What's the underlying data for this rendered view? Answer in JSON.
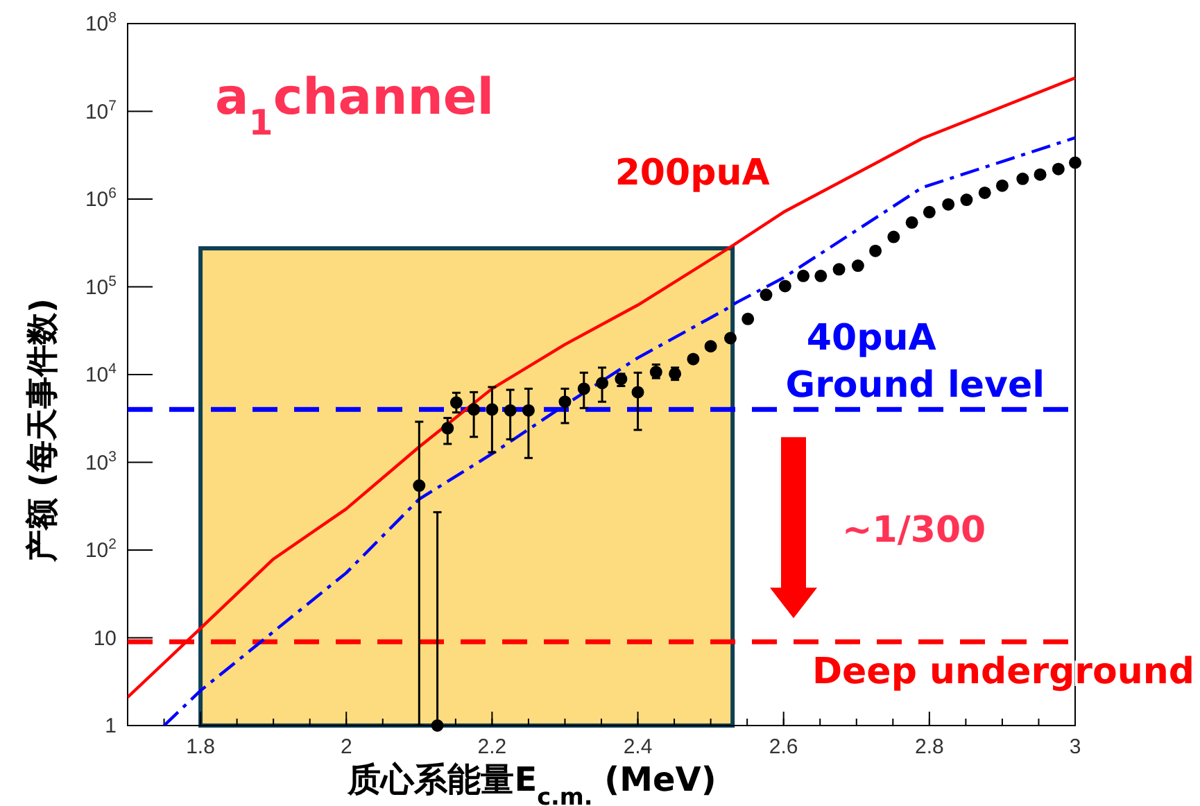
{
  "chart_data": {
    "type": "line",
    "xlabel": "质心系能量E$_{c.m.}$ (MeV)",
    "ylabel": "产额 (每天事件数)",
    "xlim": [
      1.7,
      3
    ],
    "xticks": [
      1.8,
      2,
      2.2,
      2.4,
      2.6,
      2.8,
      3
    ],
    "ylim": [
      1,
      100000000
    ],
    "log": "y",
    "grid": false,
    "legend": false,
    "yticks": [
      {
        "value": 1,
        "label": "1"
      },
      {
        "value": 10,
        "label": "10"
      },
      {
        "value": 100,
        "label": "10$^{2}$"
      },
      {
        "value": 1000,
        "label": "10$^{3}$"
      },
      {
        "value": 10000,
        "label": "10$^{4}$"
      },
      {
        "value": 100000,
        "label": "10$^{5}$"
      },
      {
        "value": 1000000,
        "label": "10$^{6}$"
      },
      {
        "value": 10000000,
        "label": "10$^{7}$"
      },
      {
        "value": 100000000,
        "label": "10$^{8}$"
      }
    ],
    "series": [
      {
        "type": "line",
        "name": "200puA",
        "color": "#ff0000",
        "marker": "none",
        "line_style": "solid",
        "x": [
          1.7,
          1.8,
          1.9,
          2.0,
          2.1,
          2.2,
          2.3,
          2.4,
          2.52,
          2.6,
          2.79,
          3.0
        ],
        "values": [
          2.1,
          12.8,
          79,
          295,
          1500,
          6900,
          22000,
          62000,
          260000,
          710000,
          4900000,
          24000000
        ]
      },
      {
        "type": "line",
        "name": "40puA",
        "color": "#0000ff",
        "marker": "none",
        "line_style": "dashdot",
        "x": [
          1.75,
          1.8,
          2.0,
          2.1,
          2.2,
          2.3,
          2.4,
          2.52,
          2.535,
          2.6,
          2.79,
          3.0
        ],
        "values": [
          1,
          2.5,
          55,
          380,
          1250,
          4500,
          15500,
          55000,
          66000,
          127000,
          1350000,
          5000000
        ]
      },
      {
        "type": "scatter",
        "color": "#000000",
        "marker": "circle",
        "x": [
          2.1,
          2.125,
          2.139,
          2.151,
          2.175,
          2.2,
          2.225,
          2.25,
          2.3,
          2.326,
          2.351,
          2.377,
          2.4,
          2.425,
          2.451,
          2.476,
          2.5,
          2.527,
          2.551,
          2.576,
          2.602,
          2.627,
          2.651,
          2.676,
          2.702,
          2.726,
          2.751,
          2.776,
          2.8,
          2.826,
          2.851,
          2.876,
          2.9,
          2.928,
          2.952,
          2.977,
          3.0
        ],
        "values": [
          543,
          1,
          2450,
          4800,
          4000,
          4000,
          3900,
          3900,
          4900,
          6900,
          8000,
          8900,
          6300,
          10700,
          10200,
          15000,
          21000,
          26000,
          43000,
          81000,
          102000,
          133000,
          133000,
          158000,
          174000,
          257000,
          370000,
          540000,
          710000,
          870000,
          980000,
          1180000,
          1420000,
          1700000,
          1900000,
          2200000,
          2600000
        ],
        "errors": [
          [
            1,
            2900
          ],
          [
            1,
            270
          ],
          [
            1620,
            3200
          ],
          [
            3700,
            6200
          ],
          [
            1950,
            6300
          ],
          [
            1300,
            7200
          ],
          [
            1830,
            6700
          ],
          [
            1120,
            6900
          ],
          [
            2800,
            6900
          ],
          [
            4150,
            10500
          ],
          [
            4900,
            12000
          ],
          [
            7400,
            10200
          ],
          [
            2340,
            10500
          ],
          [
            9100,
            13000
          ],
          [
            8700,
            12000
          ],
          null,
          null,
          null,
          null,
          null,
          null,
          null,
          null,
          null,
          null,
          null,
          null,
          null,
          null,
          null,
          null,
          null,
          null,
          null,
          null,
          null,
          null
        ]
      }
    ],
    "ref_lines": [
      {
        "axis": "y",
        "value": 4000,
        "label": "Ground level",
        "color": "#0000ff",
        "line_style": "dashed"
      },
      {
        "axis": "y",
        "value": 9,
        "label": "Deep underground",
        "color": "#ff0000",
        "line_style": "dashed"
      }
    ],
    "bands": [
      {
        "axis": "x",
        "from": 1.8,
        "to": 2.53,
        "color": "#fddc7f"
      }
    ],
    "annotations": [
      "a$_{1}$channel",
      "~1/300"
    ]
  }
}
